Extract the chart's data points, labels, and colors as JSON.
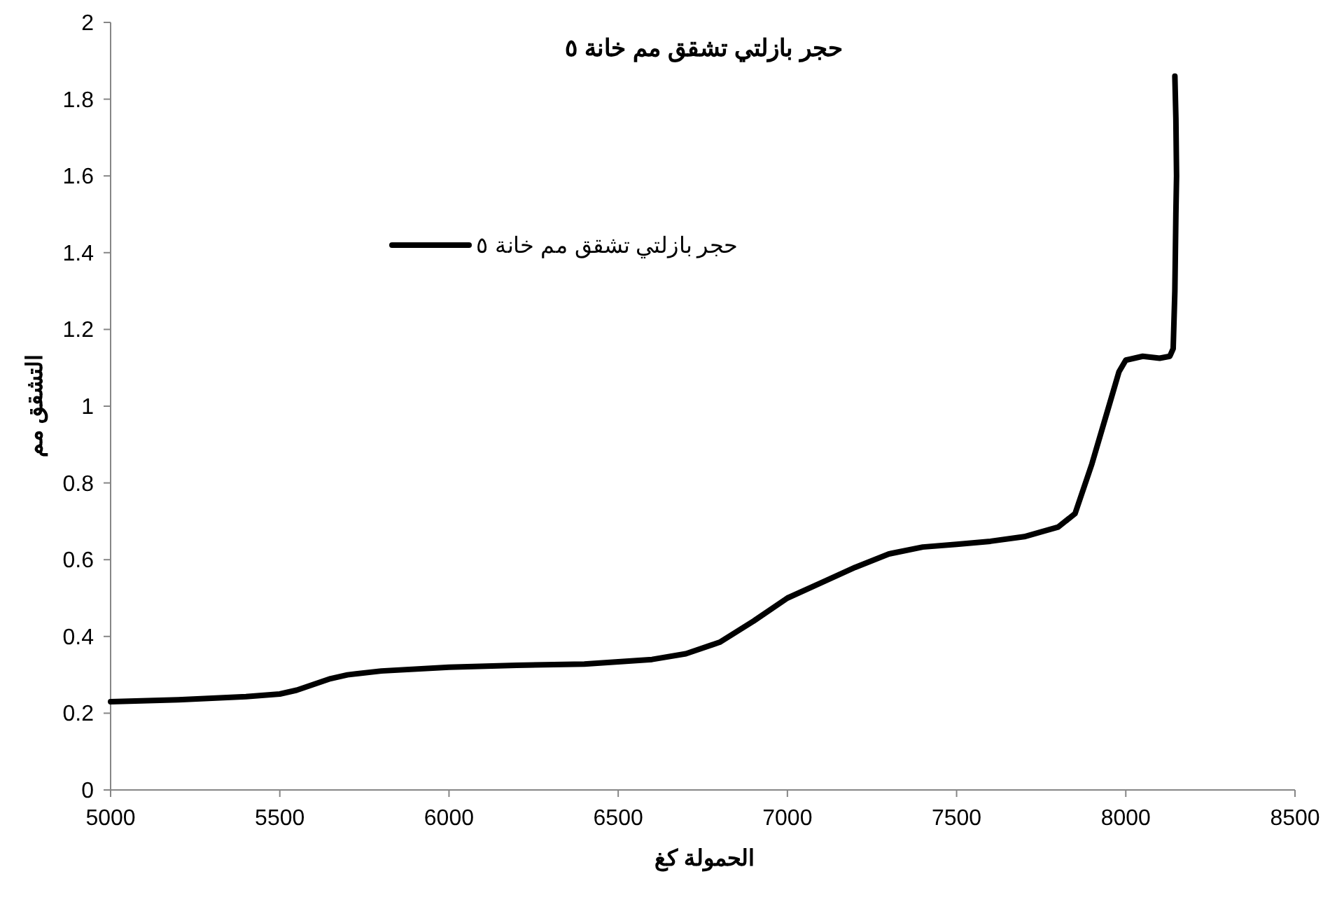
{
  "chart_data": {
    "type": "line",
    "title": "حجر بازلتي تشقق مم خانة ٥",
    "xlabel": "الحمولة كغ",
    "ylabel": "التشقق مم",
    "xlim": [
      5000,
      8500
    ],
    "xticks": [
      5000,
      5500,
      6000,
      6500,
      7000,
      7500,
      8000,
      8500
    ],
    "ylim": [
      0,
      2
    ],
    "yticks": [
      0,
      0.2,
      0.4,
      0.6,
      0.8,
      1,
      1.2,
      1.4,
      1.6,
      1.8,
      2
    ],
    "legend": "top left",
    "grid": false,
    "marker": "none",
    "line_style": "solid",
    "series": [
      {
        "name": "حجر بازلتي تشقق مم خانة ٥",
        "color": "#000000",
        "x": [
          5000,
          5200,
          5400,
          5500,
          5550,
          5600,
          5650,
          5700,
          5800,
          6000,
          6200,
          6400,
          6600,
          6700,
          6800,
          6900,
          7000,
          7100,
          7200,
          7300,
          7400,
          7500,
          7600,
          7700,
          7800,
          7850,
          7900,
          7950,
          7980,
          8000,
          8050,
          8100,
          8130,
          8140,
          8145,
          8148,
          8150,
          8148,
          8145
        ],
        "values": [
          0.23,
          0.235,
          0.243,
          0.25,
          0.26,
          0.275,
          0.29,
          0.3,
          0.31,
          0.32,
          0.325,
          0.328,
          0.34,
          0.355,
          0.385,
          0.44,
          0.5,
          0.54,
          0.58,
          0.615,
          0.633,
          0.64,
          0.648,
          0.66,
          0.685,
          0.72,
          0.85,
          1.0,
          1.09,
          1.12,
          1.13,
          1.125,
          1.13,
          1.15,
          1.3,
          1.5,
          1.6,
          1.75,
          1.86
        ]
      }
    ]
  }
}
